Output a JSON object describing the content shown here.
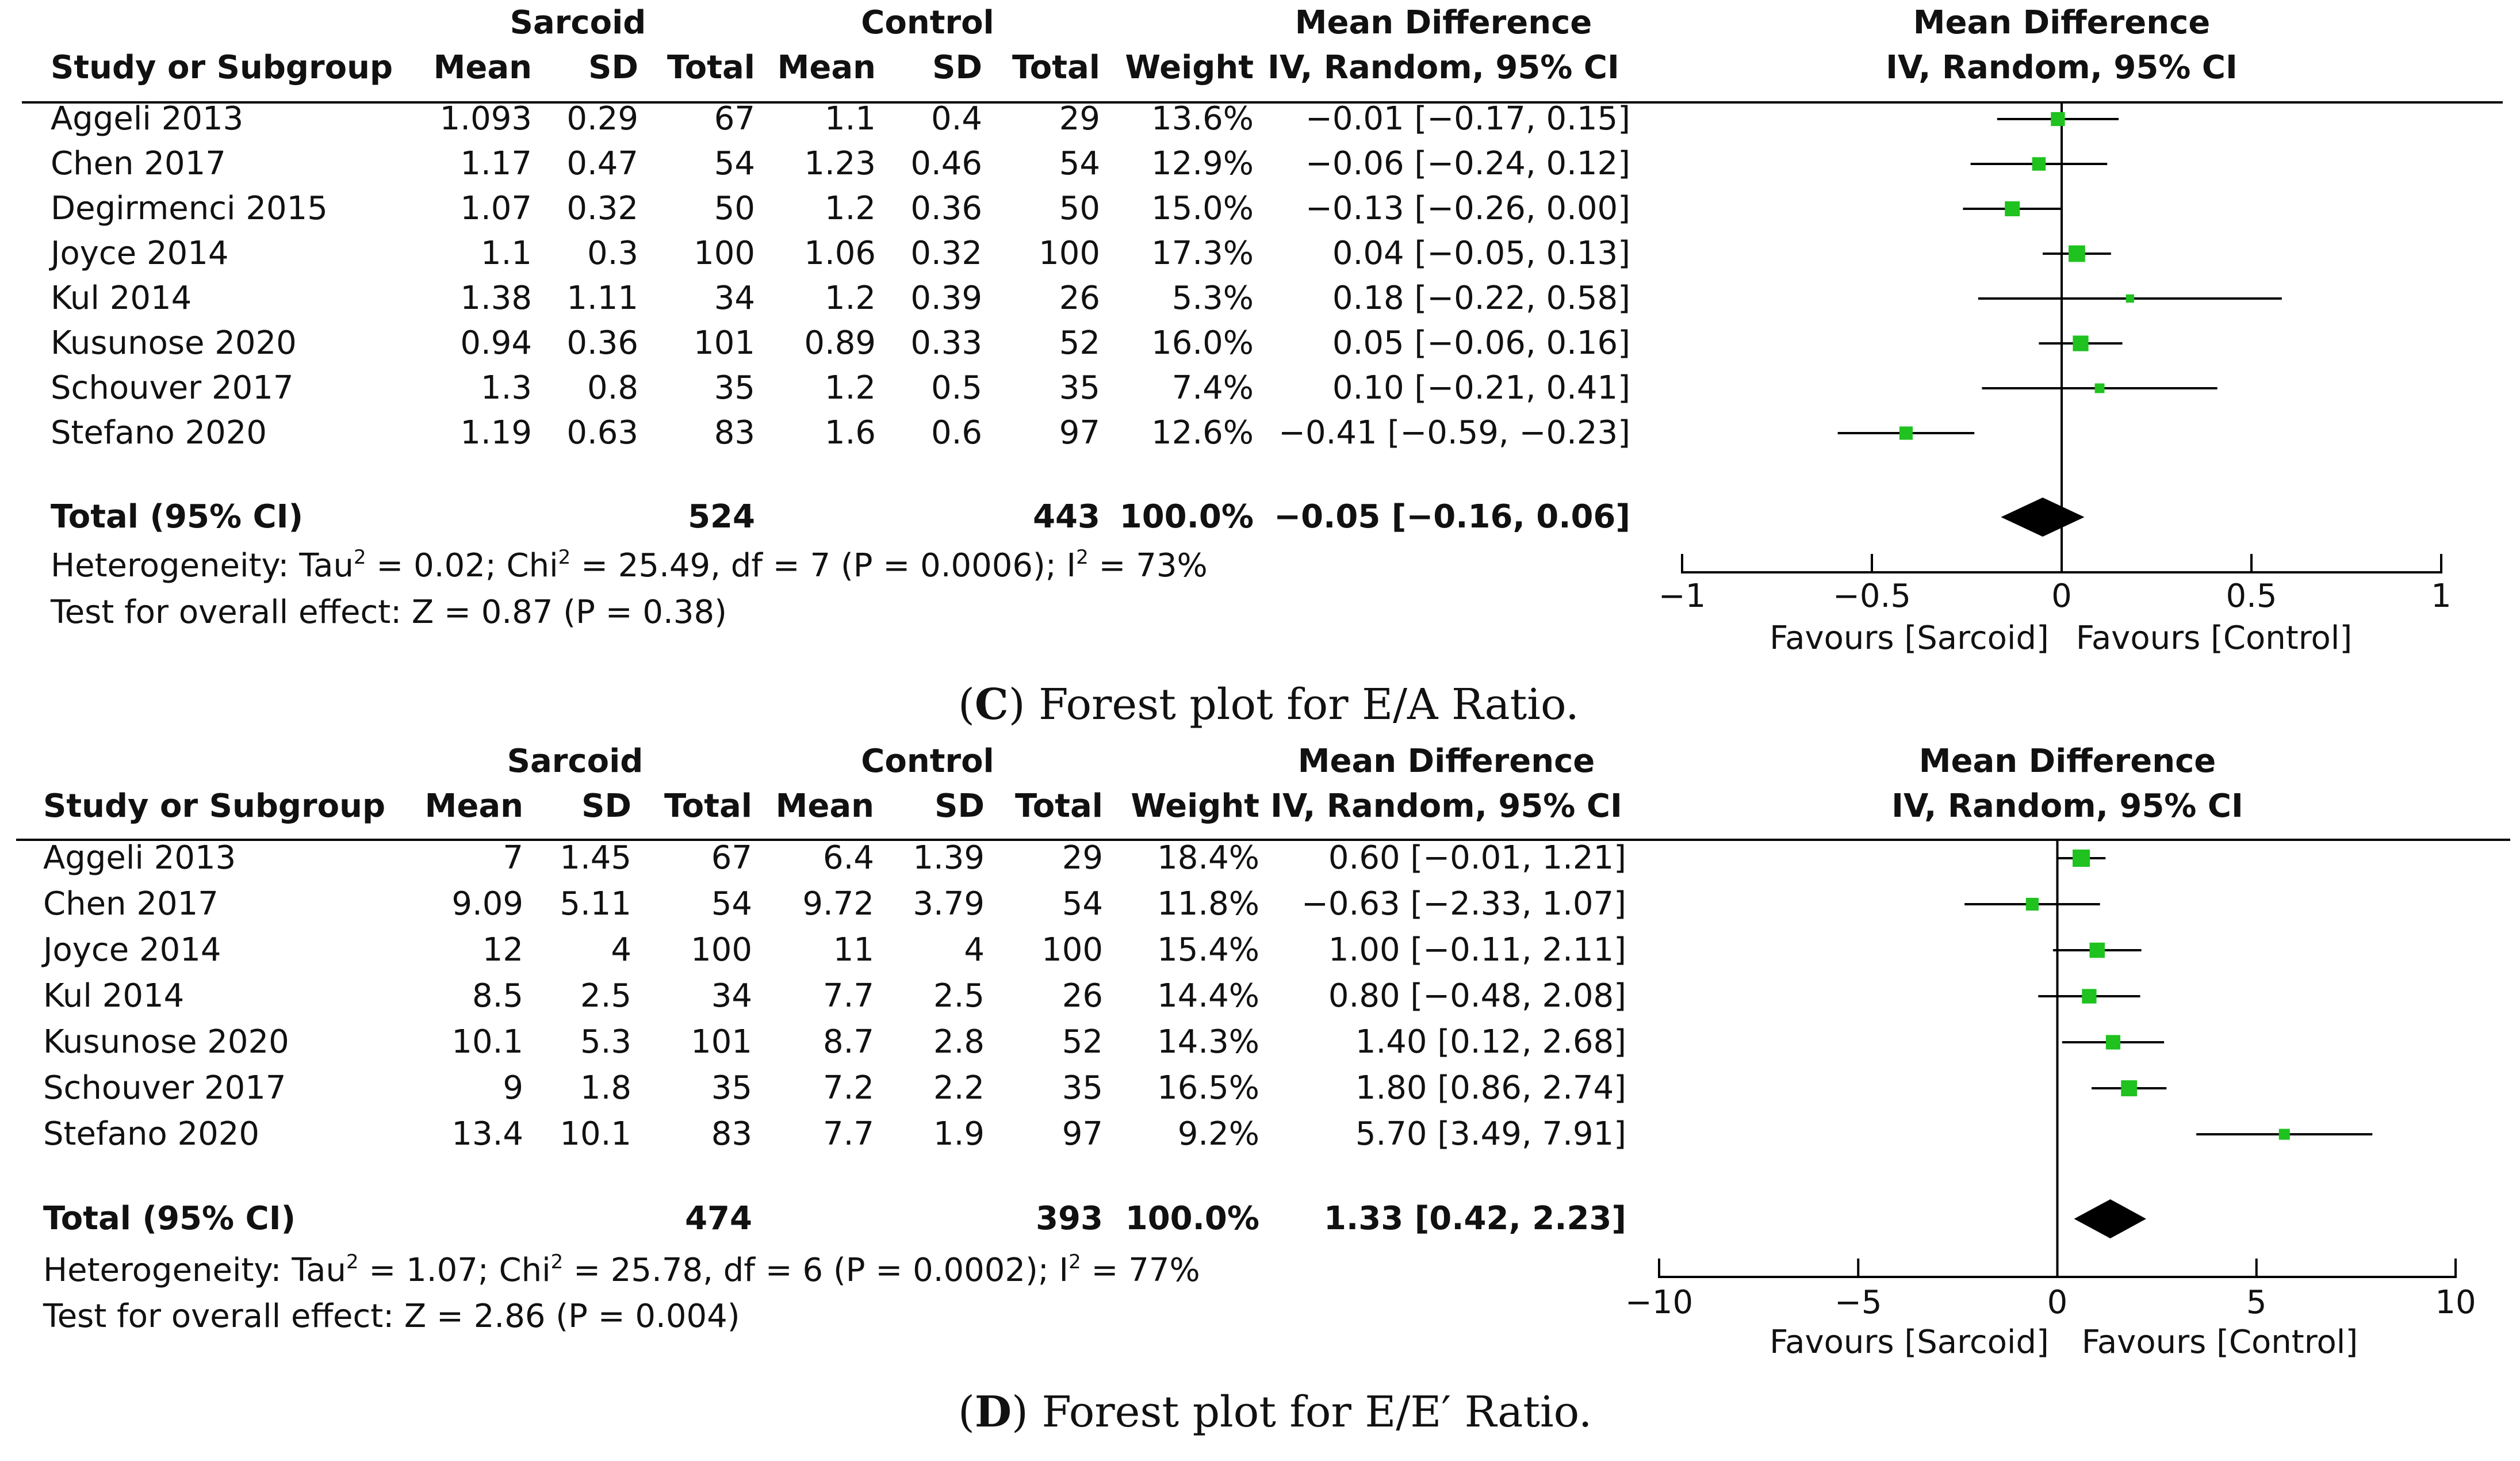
{
  "chart_data": [
    {
      "type": "forest",
      "caption": {
        "open": "(",
        "letter": "C",
        "close": ") Forest plot for E/A Ratio."
      },
      "header": {
        "group1": "Sarcoid",
        "group2": "Control",
        "study": "Study or Subgroup",
        "mean": "Mean",
        "sd": "SD",
        "total": "Total",
        "weight": "Weight",
        "md_title": "Mean Difference",
        "md_method": "IV, Random, 95% CI"
      },
      "studies": [
        {
          "name": "Aggeli 2013",
          "m1": "1.093",
          "sd1": "0.29",
          "n1": "67",
          "m2": "1.1",
          "sd2": "0.4",
          "n2": "29",
          "weight": "13.6%",
          "ci_text": "−0.01 [−0.17, 0.15]",
          "md": -0.01,
          "lo": -0.17,
          "hi": 0.15,
          "w": 13.6
        },
        {
          "name": "Chen 2017",
          "m1": "1.17",
          "sd1": "0.47",
          "n1": "54",
          "m2": "1.23",
          "sd2": "0.46",
          "n2": "54",
          "weight": "12.9%",
          "ci_text": "−0.06 [−0.24, 0.12]",
          "md": -0.06,
          "lo": -0.24,
          "hi": 0.12,
          "w": 12.9
        },
        {
          "name": "Degirmenci 2015",
          "m1": "1.07",
          "sd1": "0.32",
          "n1": "50",
          "m2": "1.2",
          "sd2": "0.36",
          "n2": "50",
          "weight": "15.0%",
          "ci_text": "−0.13 [−0.26, 0.00]",
          "md": -0.13,
          "lo": -0.26,
          "hi": 0.0,
          "w": 15.0
        },
        {
          "name": "Joyce 2014",
          "m1": "1.1",
          "sd1": "0.3",
          "n1": "100",
          "m2": "1.06",
          "sd2": "0.32",
          "n2": "100",
          "weight": "17.3%",
          "ci_text": "0.04 [−0.05, 0.13]",
          "md": 0.04,
          "lo": -0.05,
          "hi": 0.13,
          "w": 17.3
        },
        {
          "name": "Kul 2014",
          "m1": "1.38",
          "sd1": "1.11",
          "n1": "34",
          "m2": "1.2",
          "sd2": "0.39",
          "n2": "26",
          "weight": "5.3%",
          "ci_text": "0.18 [−0.22, 0.58]",
          "md": 0.18,
          "lo": -0.22,
          "hi": 0.58,
          "w": 5.3
        },
        {
          "name": "Kusunose 2020",
          "m1": "0.94",
          "sd1": "0.36",
          "n1": "101",
          "m2": "0.89",
          "sd2": "0.33",
          "n2": "52",
          "weight": "16.0%",
          "ci_text": "0.05 [−0.06, 0.16]",
          "md": 0.05,
          "lo": -0.06,
          "hi": 0.16,
          "w": 16.0
        },
        {
          "name": "Schouver 2017",
          "m1": "1.3",
          "sd1": "0.8",
          "n1": "35",
          "m2": "1.2",
          "sd2": "0.5",
          "n2": "35",
          "weight": "7.4%",
          "ci_text": "0.10 [−0.21, 0.41]",
          "md": 0.1,
          "lo": -0.21,
          "hi": 0.41,
          "w": 7.4
        },
        {
          "name": "Stefano 2020",
          "m1": "1.19",
          "sd1": "0.63",
          "n1": "83",
          "m2": "1.6",
          "sd2": "0.6",
          "n2": "97",
          "weight": "12.6%",
          "ci_text": "−0.41 [−0.59, −0.23]",
          "md": -0.41,
          "lo": -0.59,
          "hi": -0.23,
          "w": 12.6
        }
      ],
      "total": {
        "label": "Total (95% CI)",
        "n1": "524",
        "n2": "443",
        "weight": "100.0%",
        "ci_text": "−0.05 [−0.16, 0.06]",
        "md": -0.05,
        "lo": -0.16,
        "hi": 0.06
      },
      "heterogeneity": {
        "p1": "Heterogeneity: Tau",
        "p2": " = 0.02; Chi",
        "p3": " = 25.49, df = 7 (P = 0.0006); I",
        "p4": " = 73%",
        "sup": "2"
      },
      "overall": "Test for overall effect: Z = 0.87 (P = 0.38)",
      "axis": {
        "min": -1,
        "max": 1,
        "ticks": [
          -1,
          -0.5,
          0,
          0.5,
          1
        ],
        "tick_labels": [
          "−1",
          "−0.5",
          "0",
          "0.5",
          "1"
        ]
      },
      "favours": {
        "left": "Favours [Sarcoid]",
        "right": "Favours [Control]"
      }
    },
    {
      "type": "forest",
      "caption": {
        "open": "(",
        "letter": "D",
        "close": ") Forest plot for E/E′ Ratio."
      },
      "header": {
        "group1": "Sarcoid",
        "group2": "Control",
        "study": "Study or Subgroup",
        "mean": "Mean",
        "sd": "SD",
        "total": "Total",
        "weight": "Weight",
        "md_title": "Mean Difference",
        "md_method": "IV, Random, 95% CI"
      },
      "studies": [
        {
          "name": "Aggeli 2013",
          "m1": "7",
          "sd1": "1.45",
          "n1": "67",
          "m2": "6.4",
          "sd2": "1.39",
          "n2": "29",
          "weight": "18.4%",
          "ci_text": "0.60 [−0.01, 1.21]",
          "md": 0.6,
          "lo": -0.01,
          "hi": 1.21,
          "w": 18.4
        },
        {
          "name": "Chen 2017",
          "m1": "9.09",
          "sd1": "5.11",
          "n1": "54",
          "m2": "9.72",
          "sd2": "3.79",
          "n2": "54",
          "weight": "11.8%",
          "ci_text": "−0.63 [−2.33, 1.07]",
          "md": -0.63,
          "lo": -2.33,
          "hi": 1.07,
          "w": 11.8
        },
        {
          "name": "Joyce 2014",
          "m1": "12",
          "sd1": "4",
          "n1": "100",
          "m2": "11",
          "sd2": "4",
          "n2": "100",
          "weight": "15.4%",
          "ci_text": "1.00 [−0.11, 2.11]",
          "md": 1.0,
          "lo": -0.11,
          "hi": 2.11,
          "w": 15.4
        },
        {
          "name": "Kul 2014",
          "m1": "8.5",
          "sd1": "2.5",
          "n1": "34",
          "m2": "7.7",
          "sd2": "2.5",
          "n2": "26",
          "weight": "14.4%",
          "ci_text": "0.80 [−0.48, 2.08]",
          "md": 0.8,
          "lo": -0.48,
          "hi": 2.08,
          "w": 14.4
        },
        {
          "name": "Kusunose 2020",
          "m1": "10.1",
          "sd1": "5.3",
          "n1": "101",
          "m2": "8.7",
          "sd2": "2.8",
          "n2": "52",
          "weight": "14.3%",
          "ci_text": "1.40 [0.12, 2.68]",
          "md": 1.4,
          "lo": 0.12,
          "hi": 2.68,
          "w": 14.3
        },
        {
          "name": "Schouver 2017",
          "m1": "9",
          "sd1": "1.8",
          "n1": "35",
          "m2": "7.2",
          "sd2": "2.2",
          "n2": "35",
          "weight": "16.5%",
          "ci_text": "1.80 [0.86, 2.74]",
          "md": 1.8,
          "lo": 0.86,
          "hi": 2.74,
          "w": 16.5
        },
        {
          "name": "Stefano 2020",
          "m1": "13.4",
          "sd1": "10.1",
          "n1": "83",
          "m2": "7.7",
          "sd2": "1.9",
          "n2": "97",
          "weight": "9.2%",
          "ci_text": "5.70 [3.49, 7.91]",
          "md": 5.7,
          "lo": 3.49,
          "hi": 7.91,
          "w": 9.2
        }
      ],
      "total": {
        "label": "Total (95% CI)",
        "n1": "474",
        "n2": "393",
        "weight": "100.0%",
        "ci_text": "1.33 [0.42, 2.23]",
        "md": 1.33,
        "lo": 0.42,
        "hi": 2.23
      },
      "heterogeneity": {
        "p1": "Heterogeneity: Tau",
        "p2": " = 1.07; Chi",
        "p3": " = 25.78, df = 6 (P = 0.0002); I",
        "p4": " = 77%",
        "sup": "2"
      },
      "overall": "Test for overall effect: Z = 2.86 (P = 0.004)",
      "axis": {
        "min": -10,
        "max": 10,
        "ticks": [
          -10,
          -5,
          0,
          5,
          10
        ],
        "tick_labels": [
          "−10",
          "−5",
          "0",
          "5",
          "10"
        ]
      },
      "favours": {
        "left": "Favours [Sarcoid]",
        "right": "Favours [Control]"
      }
    }
  ],
  "colors": {
    "marker": "#1fc21f",
    "diamond": "#000000",
    "line": "#000000",
    "text": "#111111"
  }
}
